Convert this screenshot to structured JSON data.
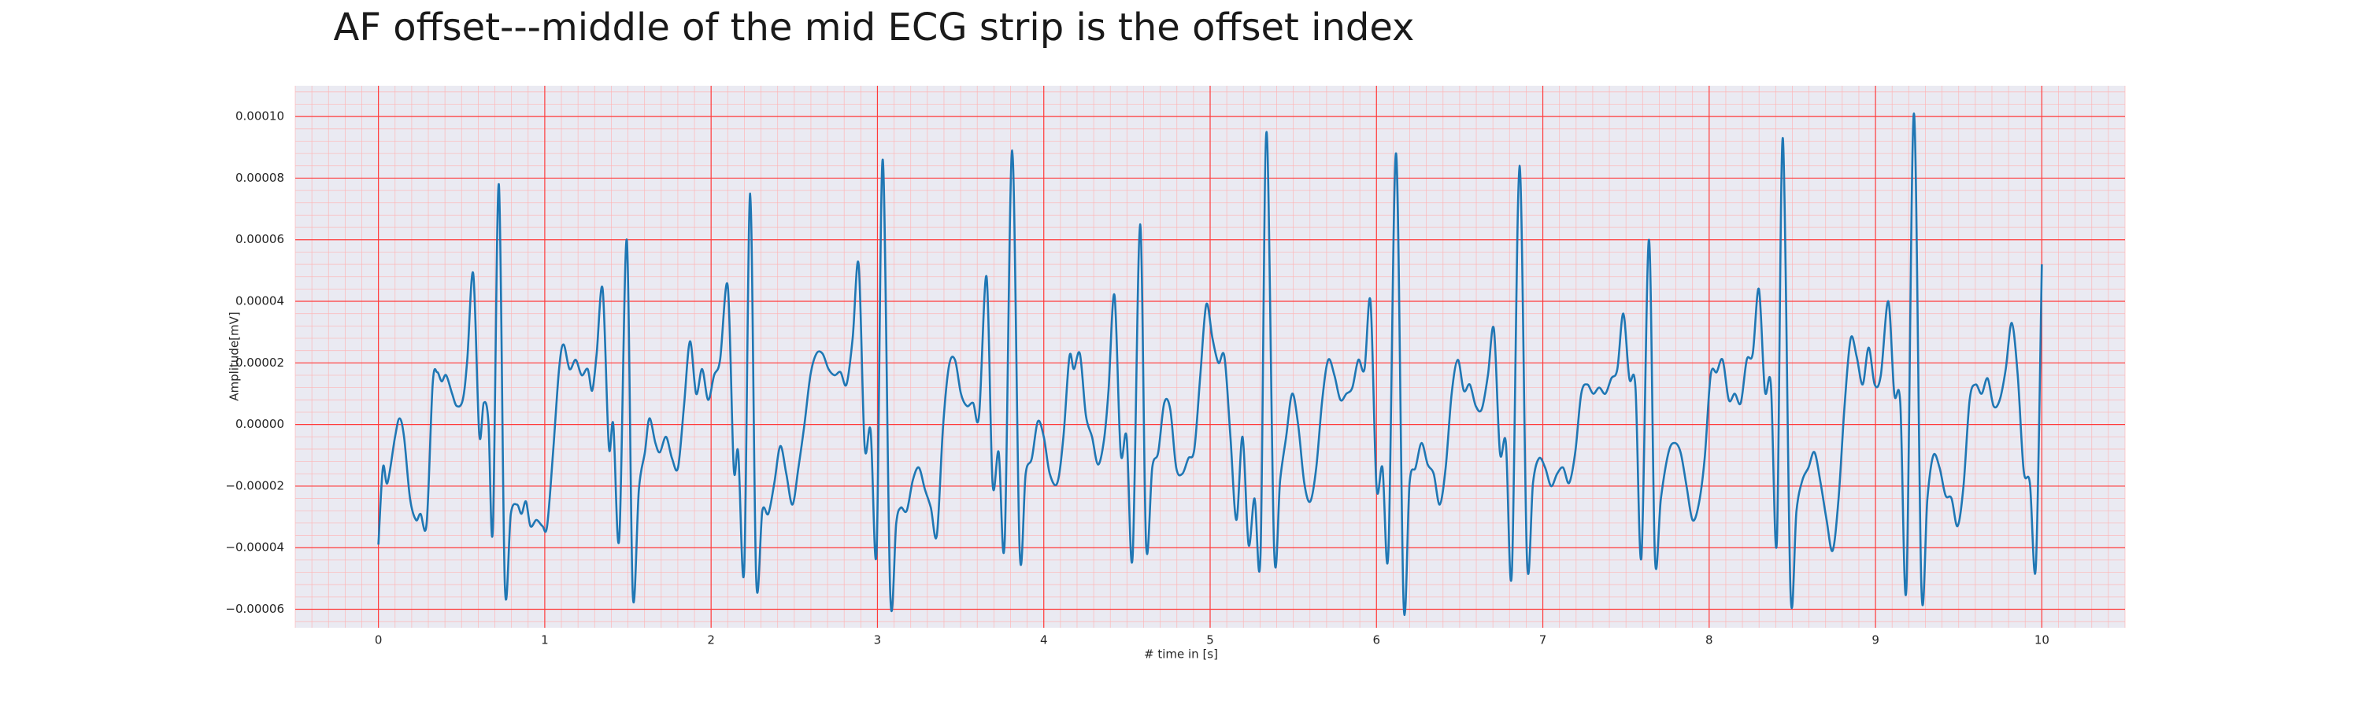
{
  "chart_data": {
    "type": "line",
    "title": "AF offset---middle of the mid ECG strip is the offset index",
    "xlabel": "# time in [s]",
    "ylabel": "Amplitude[mV]",
    "color": "#1f77b4",
    "grid": true,
    "minor_grid": true,
    "xlim": [
      -0.5,
      10.5
    ],
    "ylim": [
      -6.6e-05,
      0.00011
    ],
    "xticks": [
      0,
      1,
      2,
      3,
      4,
      5,
      6,
      7,
      8,
      9,
      10
    ],
    "yticks": [
      {
        "value": -6e-05,
        "label": "−0.00006"
      },
      {
        "value": -4e-05,
        "label": "−0.00004"
      },
      {
        "value": -2e-05,
        "label": "−0.00002"
      },
      {
        "value": 0,
        "label": "0.00000"
      },
      {
        "value": 2e-05,
        "label": "0.00002"
      },
      {
        "value": 4e-05,
        "label": "0.00004"
      },
      {
        "value": 6e-05,
        "label": "0.00006"
      },
      {
        "value": 8e-05,
        "label": "0.00008"
      },
      {
        "value": 0.0001,
        "label": "0.00010"
      }
    ],
    "x": [
      0,
      0.027,
      0.054,
      0.1,
      0.127,
      0.154,
      0.19,
      0.226,
      0.253,
      0.29,
      0.326,
      0.353,
      0.38,
      0.407,
      0.443,
      0.471,
      0.507,
      0.534,
      0.57,
      0.606,
      0.633,
      0.661,
      0.688,
      0.724,
      0.76,
      0.796,
      0.833,
      0.86,
      0.887,
      0.914,
      0.95,
      0.986,
      1.014,
      1.05,
      1.086,
      1.113,
      1.149,
      1.186,
      1.222,
      1.258,
      1.285,
      1.312,
      1.348,
      1.385,
      1.412,
      1.448,
      1.493,
      1.529,
      1.566,
      1.602,
      1.629,
      1.665,
      1.692,
      1.729,
      1.765,
      1.801,
      1.837,
      1.873,
      1.91,
      1.946,
      1.982,
      2.018,
      2.054,
      2.1,
      2.136,
      2.163,
      2.199,
      2.235,
      2.271,
      2.308,
      2.344,
      2.38,
      2.416,
      2.452,
      2.489,
      2.525,
      2.561,
      2.597,
      2.633,
      2.67,
      2.706,
      2.742,
      2.778,
      2.814,
      2.851,
      2.887,
      2.923,
      2.959,
      2.995,
      3.032,
      3.077,
      3.113,
      3.14,
      3.176,
      3.213,
      3.249,
      3.285,
      3.321,
      3.357,
      3.394,
      3.43,
      3.466,
      3.502,
      3.538,
      3.575,
      3.611,
      3.656,
      3.692,
      3.729,
      3.765,
      3.81,
      3.855,
      3.891,
      3.928,
      3.964,
      4.0,
      4.036,
      4.081,
      4.118,
      4.154,
      4.181,
      4.217,
      4.253,
      4.29,
      4.326,
      4.362,
      4.389,
      4.425,
      4.462,
      4.498,
      4.534,
      4.579,
      4.615,
      4.652,
      4.688,
      4.724,
      4.76,
      4.796,
      4.833,
      4.869,
      4.905,
      4.941,
      4.977,
      5.014,
      5.05,
      5.086,
      5.122,
      5.158,
      5.195,
      5.231,
      5.267,
      5.303,
      5.339,
      5.385,
      5.421,
      5.457,
      5.493,
      5.529,
      5.566,
      5.602,
      5.638,
      5.674,
      5.71,
      5.747,
      5.783,
      5.819,
      5.855,
      5.891,
      5.928,
      5.964,
      6.0,
      6.036,
      6.072,
      6.118,
      6.163,
      6.199,
      6.235,
      6.271,
      6.308,
      6.344,
      6.38,
      6.416,
      6.452,
      6.489,
      6.525,
      6.561,
      6.597,
      6.633,
      6.67,
      6.706,
      6.742,
      6.778,
      6.814,
      6.86,
      6.905,
      6.941,
      6.977,
      7.014,
      7.05,
      7.086,
      7.122,
      7.158,
      7.195,
      7.231,
      7.267,
      7.303,
      7.339,
      7.376,
      7.412,
      7.448,
      7.484,
      7.52,
      7.557,
      7.593,
      7.638,
      7.674,
      7.71,
      7.756,
      7.792,
      7.828,
      7.864,
      7.9,
      7.937,
      7.973,
      8.009,
      8.045,
      8.081,
      8.118,
      8.154,
      8.19,
      8.226,
      8.262,
      8.299,
      8.335,
      8.371,
      8.407,
      8.443,
      8.489,
      8.525,
      8.561,
      8.597,
      8.633,
      8.67,
      8.706,
      8.742,
      8.778,
      8.814,
      8.851,
      8.887,
      8.923,
      8.959,
      8.995,
      9.032,
      9.077,
      9.113,
      9.149,
      9.186,
      9.231,
      9.276,
      9.312,
      9.348,
      9.385,
      9.421,
      9.457,
      9.493,
      9.529,
      9.566,
      9.602,
      9.638,
      9.674,
      9.71,
      9.747,
      9.783,
      9.819,
      9.855,
      9.891,
      9.928,
      9.964,
      10.0
    ],
    "values": [
      -3.9e-05,
      -1.4e-05,
      -1.9e-05,
      -4e-06,
      2e-06,
      -4e-06,
      -2.4e-05,
      -3.1e-05,
      -2.9e-05,
      -3.2e-05,
      1.3e-05,
      1.7e-05,
      1.4e-05,
      1.6e-05,
      1e-05,
      6e-06,
      8e-06,
      2.1e-05,
      4.9e-05,
      -3e-06,
      7e-06,
      1e-06,
      -3.4e-05,
      7.8e-05,
      -5.2e-05,
      -2.9e-05,
      -2.6e-05,
      -2.9e-05,
      -2.5e-05,
      -3.3e-05,
      -3.1e-05,
      -3.3e-05,
      -3.3e-05,
      -9e-06,
      1.8e-05,
      2.6e-05,
      1.8e-05,
      2.1e-05,
      1.6e-05,
      1.8e-05,
      1.1e-05,
      2.3e-05,
      4.4e-05,
      -7e-06,
      0,
      -3.7e-05,
      6e-05,
      -5.5e-05,
      -2.1e-05,
      -9e-06,
      2e-06,
      -6e-06,
      -9e-06,
      -4e-06,
      -1.1e-05,
      -1.4e-05,
      6e-06,
      2.7e-05,
      1e-05,
      1.8e-05,
      8e-06,
      1.6e-05,
      2.1e-05,
      4.5e-05,
      -1.4e-05,
      -9e-06,
      -4.7e-05,
      7.5e-05,
      -5e-05,
      -2.8e-05,
      -2.9e-05,
      -1.9e-05,
      -7e-06,
      -1.6e-05,
      -2.6e-05,
      -1.4e-05,
      0,
      1.6e-05,
      2.3e-05,
      2.3e-05,
      1.8e-05,
      1.6e-05,
      1.7e-05,
      1.3e-05,
      2.8e-05,
      5.2e-05,
      -7e-06,
      -2e-06,
      -4.1e-05,
      8.6e-05,
      -5.5e-05,
      -3.2e-05,
      -2.7e-05,
      -2.8e-05,
      -1.8e-05,
      -1.4e-05,
      -2.1e-05,
      -2.7e-05,
      -3.6e-05,
      -1e-06,
      1.9e-05,
      2.1e-05,
      1e-05,
      6e-06,
      7e-06,
      3e-06,
      4.8e-05,
      -1.9e-05,
      -9e-06,
      -3.8e-05,
      8.9e-05,
      -4.1e-05,
      -1.6e-05,
      -1.1e-05,
      1e-06,
      -4e-06,
      -1.6e-05,
      -1.9e-05,
      -4e-06,
      2.2e-05,
      1.8e-05,
      2.3e-05,
      3e-06,
      -4e-06,
      -1.3e-05,
      -5e-06,
      1.1e-05,
      4.2e-05,
      -9e-06,
      -4e-06,
      -4.3e-05,
      6.5e-05,
      -3.9e-05,
      -1.4e-05,
      -9e-06,
      7e-06,
      5e-06,
      -1.4e-05,
      -1.6e-05,
      -1.1e-05,
      -8e-06,
      1.6e-05,
      3.9e-05,
      2.8e-05,
      2e-05,
      2.2e-05,
      -4e-06,
      -3.1e-05,
      -4e-06,
      -3.9e-05,
      -2.4e-05,
      -4.2e-05,
      9.5e-05,
      -4.1e-05,
      -1.8e-05,
      -4e-06,
      1e-05,
      0,
      -1.9e-05,
      -2.5e-05,
      -1.4e-05,
      8e-06,
      2.1e-05,
      1.6e-05,
      8e-06,
      1e-05,
      1.2e-05,
      2.1e-05,
      1.8e-05,
      4e-05,
      -2e-05,
      -1.4e-05,
      -4.1e-05,
      8.8e-05,
      -5.8e-05,
      -1.9e-05,
      -1.4e-05,
      -6e-06,
      -1.3e-05,
      -1.6e-05,
      -2.6e-05,
      -1.4e-05,
      1e-05,
      2.1e-05,
      1.1e-05,
      1.3e-05,
      6e-06,
      5e-06,
      1.6e-05,
      3.1e-05,
      -9e-06,
      -6e-06,
      -4.8e-05,
      8.4e-05,
      -4.4e-05,
      -1.9e-05,
      -1.1e-05,
      -1.4e-05,
      -2e-05,
      -1.6e-05,
      -1.4e-05,
      -1.9e-05,
      -9e-06,
      1e-05,
      1.3e-05,
      1e-05,
      1.2e-05,
      1e-05,
      1.5e-05,
      1.8e-05,
      3.6e-05,
      1.5e-05,
      1.2e-05,
      -4.3e-05,
      6e-05,
      -4.3e-05,
      -2.4e-05,
      -9e-06,
      -6e-06,
      -9e-06,
      -2e-05,
      -3.1e-05,
      -2.6e-05,
      -1.1e-05,
      1.6e-05,
      1.7e-05,
      2.1e-05,
      8e-06,
      1e-05,
      7e-06,
      2.1e-05,
      2.3e-05,
      4.4e-05,
      1.1e-05,
      1.3e-05,
      -3.8e-05,
      9.3e-05,
      -5.4e-05,
      -2.8e-05,
      -1.8e-05,
      -1.4e-05,
      -9e-06,
      -1.9e-05,
      -3.1e-05,
      -4.1e-05,
      -2.4e-05,
      6e-06,
      2.8e-05,
      2.2e-05,
      1.3e-05,
      2.5e-05,
      1.3e-05,
      1.6e-05,
      4e-05,
      1e-05,
      7e-06,
      -5.3e-05,
      0.000101,
      -5.3e-05,
      -2.4e-05,
      -1e-05,
      -1.4e-05,
      -2.3e-05,
      -2.4e-05,
      -3.3e-05,
      -2e-05,
      8e-06,
      1.3e-05,
      1e-05,
      1.5e-05,
      6e-06,
      8e-06,
      1.8e-05,
      3.3e-05,
      1.6e-05,
      -1.5e-05,
      -1.9e-05,
      -4.6e-05,
      5.2e-05
    ]
  }
}
